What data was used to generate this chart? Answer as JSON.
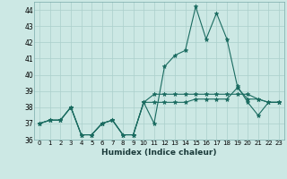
{
  "xlabel": "Humidex (Indice chaleur)",
  "xlim": [
    -0.5,
    23.5
  ],
  "ylim": [
    36,
    44.5
  ],
  "yticks": [
    36,
    37,
    38,
    39,
    40,
    41,
    42,
    43,
    44
  ],
  "xticks": [
    0,
    1,
    2,
    3,
    4,
    5,
    6,
    7,
    8,
    9,
    10,
    11,
    12,
    13,
    14,
    15,
    16,
    17,
    18,
    19,
    20,
    21,
    22,
    23
  ],
  "bg_color": "#cce8e4",
  "grid_color": "#aacfcb",
  "line_color": "#1a6b60",
  "series": [
    [
      37.0,
      37.2,
      37.2,
      38.0,
      36.3,
      36.3,
      37.0,
      37.2,
      36.3,
      36.3,
      38.3,
      38.3,
      38.3,
      38.3,
      38.3,
      38.5,
      38.5,
      38.5,
      38.5,
      39.2,
      38.5,
      38.5,
      38.3,
      38.3
    ],
    [
      37.0,
      37.2,
      37.2,
      38.0,
      36.3,
      36.3,
      37.0,
      37.2,
      36.3,
      36.3,
      38.3,
      37.0,
      40.5,
      41.2,
      41.5,
      44.2,
      42.2,
      43.8,
      42.2,
      39.3,
      38.3,
      37.5,
      38.3,
      38.3
    ],
    [
      37.0,
      37.2,
      37.2,
      38.0,
      36.3,
      36.3,
      37.0,
      37.2,
      36.3,
      36.3,
      38.3,
      38.8,
      38.8,
      38.8,
      38.8,
      38.8,
      38.8,
      38.8,
      38.8,
      38.8,
      38.8,
      38.5,
      38.3,
      38.3
    ]
  ]
}
